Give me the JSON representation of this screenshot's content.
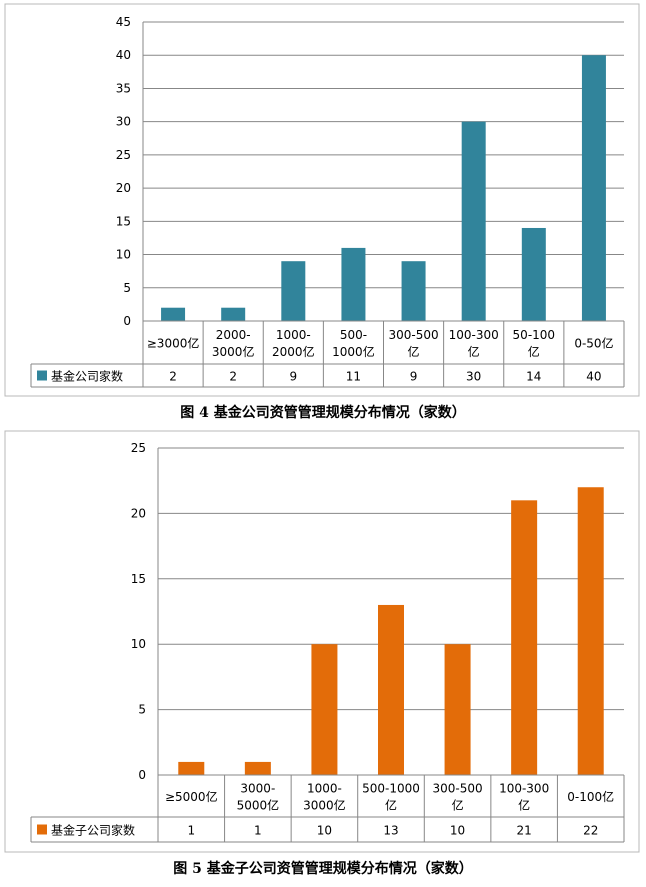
{
  "chart_data": [
    {
      "type": "bar",
      "categories": [
        "≥3000亿",
        "2000-3000亿",
        "1000-2000亿",
        "500-1000亿",
        "300-500亿",
        "100-300亿",
        "50-100亿",
        "0-50亿"
      ],
      "category_lines": [
        [
          "≥3000亿"
        ],
        [
          "2000-",
          "3000亿"
        ],
        [
          "1000-",
          "2000亿"
        ],
        [
          "500-",
          "1000亿"
        ],
        [
          "300-500",
          "亿"
        ],
        [
          "100-300",
          "亿"
        ],
        [
          "50-100",
          "亿"
        ],
        [
          "0-50亿"
        ]
      ],
      "series": [
        {
          "name": "基金公司家数",
          "values": [
            2,
            2,
            9,
            11,
            9,
            30,
            14,
            40
          ],
          "color": "#31849b"
        }
      ],
      "ylim": [
        0,
        45
      ],
      "yticks": [
        0,
        5,
        10,
        15,
        20,
        25,
        30,
        35,
        40,
        45
      ],
      "grid": true,
      "legend": "data-table",
      "caption": "图 4  基金公司资管管理规模分布情况（家数）"
    },
    {
      "type": "bar",
      "categories": [
        "≥5000亿",
        "3000-5000亿",
        "1000-3000亿",
        "500-1000亿",
        "300-500亿",
        "100-300亿",
        "0-100亿"
      ],
      "category_lines": [
        [
          "≥5000亿"
        ],
        [
          "3000-",
          "5000亿"
        ],
        [
          "1000-",
          "3000亿"
        ],
        [
          "500-1000",
          "亿"
        ],
        [
          "300-500",
          "亿"
        ],
        [
          "100-300",
          "亿"
        ],
        [
          "0-100亿"
        ]
      ],
      "series": [
        {
          "name": "基金子公司家数",
          "values": [
            1,
            1,
            10,
            13,
            10,
            21,
            22
          ],
          "color": "#e36c09"
        }
      ],
      "ylim": [
        0,
        25
      ],
      "yticks": [
        0,
        5,
        10,
        15,
        20,
        25
      ],
      "grid": true,
      "legend": "data-table",
      "caption": "图 5  基金子公司资管管理规模分布情况（家数）"
    }
  ]
}
